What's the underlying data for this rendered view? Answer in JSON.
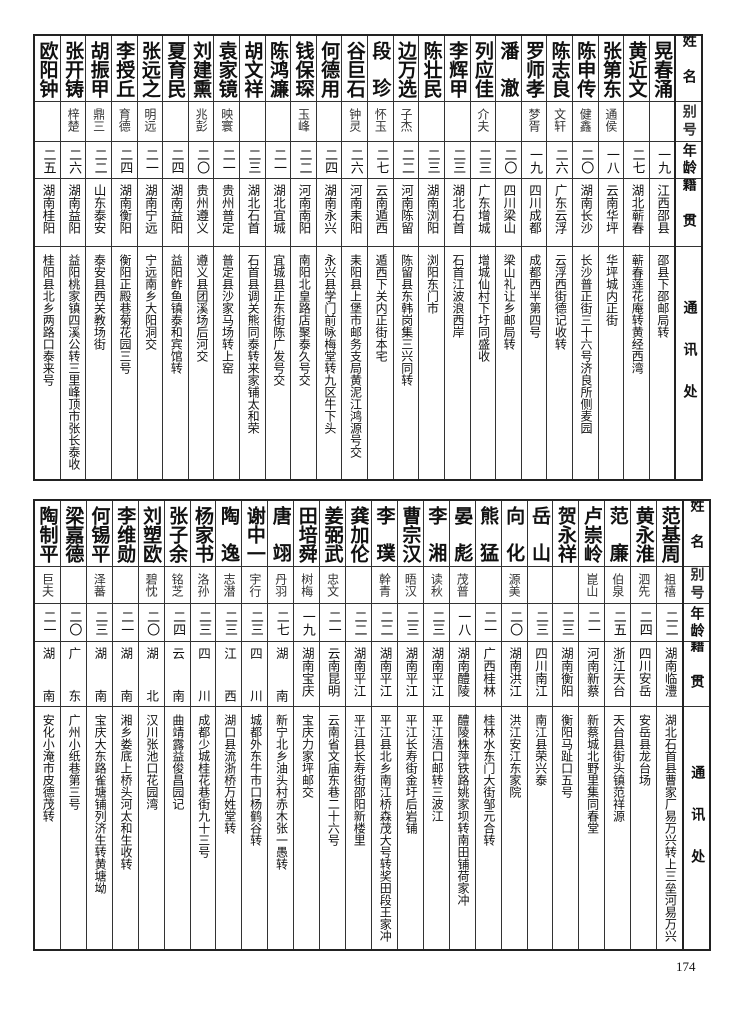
{
  "headers": {
    "name": "姓名",
    "alias": "别号",
    "age": "年龄",
    "origin": "籍贯",
    "address": "通讯处"
  },
  "top": [
    {
      "name": "晃春涌",
      "alias": "",
      "age": "一九",
      "origin": "江西邵县",
      "address": "邵县下邵邮局转"
    },
    {
      "name": "黄近文",
      "alias": "",
      "age": "二七",
      "origin": "湖北蕲春",
      "address": "蕲春莲花庵转黄经西湾"
    },
    {
      "name": "张第东",
      "alias": "通侯",
      "age": "一八",
      "origin": "云南华坪",
      "address": "华坪城内正街"
    },
    {
      "name": "陈申传",
      "alias": "健鑫",
      "age": "二〇",
      "origin": "湖南长沙",
      "address": "长沙普正街三十六号济良所侧麦园"
    },
    {
      "name": "陈志良",
      "alias": "文轩",
      "age": "二六",
      "origin": "广东云浮",
      "address": "云浮西街德记收转"
    },
    {
      "name": "罗师孝",
      "alias": "梦胥",
      "age": "一九",
      "origin": "四川成都",
      "address": "成都西半第四号"
    },
    {
      "name": "潘澈",
      "alias": "",
      "age": "二〇",
      "origin": "四川梁山",
      "address": "梁山礼让乡邮局转"
    },
    {
      "name": "列应佳",
      "alias": "介夫",
      "age": "二三",
      "origin": "广东增城",
      "address": "增城仙村下圩同盛收"
    },
    {
      "name": "李辉甲",
      "alias": "",
      "age": "二三",
      "origin": "湖北石首",
      "address": "石首江波浪西岸"
    },
    {
      "name": "陈壮民",
      "alias": "",
      "age": "二三",
      "origin": "湖南浏阳",
      "address": "浏阳东门市"
    },
    {
      "name": "边万选",
      "alias": "子杰",
      "age": "二二",
      "origin": "河南陈留",
      "address": "陈留县东韩岗集三兴同转"
    },
    {
      "name": "段珍",
      "alias": "怀玉",
      "age": "二七",
      "origin": "云南遁西",
      "address": "遁西下关内正街本宅"
    },
    {
      "name": "谷巨石",
      "alias": "钟灵",
      "age": "二六",
      "origin": "河南耒阳",
      "address": "耒阳县上堡市邮务支局黄泥江鸿源号交"
    },
    {
      "name": "何德用",
      "alias": "",
      "age": "二四",
      "origin": "湖南永兴",
      "address": "永兴县学门前咏梅堂转九区牛下头"
    },
    {
      "name": "钱保琛",
      "alias": "玉峰",
      "age": "二二",
      "origin": "河南南阳",
      "address": "南阳北皇路店聚泰久号交"
    },
    {
      "name": "陈鸿濂",
      "alias": "",
      "age": "二一",
      "origin": "湖北宜城",
      "address": "宜城县正东街陈广发号交"
    },
    {
      "name": "胡文祥",
      "alias": "",
      "age": "二三",
      "origin": "湖北石首",
      "address": "石首县调关熊同泰转来家铺太和荣"
    },
    {
      "name": "袁家镜",
      "alias": "映寰",
      "age": "二一",
      "origin": "贵州普定",
      "address": "普定县沙家马场转上窑"
    },
    {
      "name": "刘建熏",
      "alias": "兆彭",
      "age": "二〇",
      "origin": "贵州遵义",
      "address": "遵义县团溪场后河交"
    },
    {
      "name": "夏育民",
      "alias": "",
      "age": "二四",
      "origin": "湖南益阳",
      "address": "益阳鲊鱼镇泰和宾馆转"
    },
    {
      "name": "张远之",
      "alias": "明远",
      "age": "二一",
      "origin": "湖南宁远",
      "address": "宁远南乡大阳洞交"
    },
    {
      "name": "李授丘",
      "alias": "育德",
      "age": "二四",
      "origin": "湖南衡阳",
      "address": "衡阳正殿巷菊花园三号"
    },
    {
      "name": "胡振甲",
      "alias": "鼎三",
      "age": "二二",
      "origin": "山东泰安",
      "address": "泰安县西关教场街"
    },
    {
      "name": "张开铸",
      "alias": "梓楚",
      "age": "二六",
      "origin": "湖南益阳",
      "address": "益阳桃家镇四溪公转三里峰顶市张长泰收"
    },
    {
      "name": "欧阳钟",
      "alias": "",
      "age": "二五",
      "origin": "湖南桂阳",
      "address": "桂阳县北乡两路口泰来号"
    }
  ],
  "bottom": [
    {
      "name": "范基周",
      "alias": "祖禧",
      "age": "二二",
      "origin": "湖南临澧",
      "address": "湖北石首县曹家厂易万兴转上三垒河易万兴"
    },
    {
      "name": "黄永淮",
      "alias": "泗先",
      "age": "二四",
      "origin": "四川安岳",
      "address": "安岳县龙台场"
    },
    {
      "name": "范廉",
      "alias": "伯泉",
      "age": "二五",
      "origin": "浙江天台",
      "address": "天台县街头镇范祥源"
    },
    {
      "name": "卢崇岭",
      "alias": "崑山",
      "age": "二一",
      "origin": "河南新蔡",
      "address": "新蔡城北野里集同春堂"
    },
    {
      "name": "贺永祥",
      "alias": "",
      "age": "二三",
      "origin": "湖南衡阳",
      "address": "衡阳马趾口五号"
    },
    {
      "name": "岳山",
      "alias": "",
      "age": "二三",
      "origin": "四川南江",
      "address": "南江县荣兴泰"
    },
    {
      "name": "向化",
      "alias": "源美",
      "age": "二〇",
      "origin": "湖南洪江",
      "address": "洪江安江东家院"
    },
    {
      "name": "熊猛",
      "alias": "",
      "age": "二一",
      "origin": "广西桂林",
      "address": "桂林水东门大街邹元合转"
    },
    {
      "name": "晏彪",
      "alias": "茂普",
      "age": "一八",
      "origin": "湖南醴陵",
      "address": "醴陵株萍铁路姚家坝转南田铺荷家冲"
    },
    {
      "name": "李湘",
      "alias": "读秋",
      "age": "二三",
      "origin": "湖南平江",
      "address": "平江浯口邮转三波江"
    },
    {
      "name": "曹宗汉",
      "alias": "晤汉",
      "age": "二三",
      "origin": "湖南平江",
      "address": "平江长寿街金圩后岩铺"
    },
    {
      "name": "李璞",
      "alias": "幹青",
      "age": "二二",
      "origin": "湖南平江",
      "address": "平江县北乡南江桥森茂大号转奖田段王家冲"
    },
    {
      "name": "龚加伦",
      "alias": "",
      "age": "二二",
      "origin": "湖南平江",
      "address": "平江县长寿街邵阳新楼里"
    },
    {
      "name": "姜弼武",
      "alias": "忠文",
      "age": "二一",
      "origin": "云南昆明",
      "address": "云南省文庙东巷二十六号"
    },
    {
      "name": "田培舜",
      "alias": "树梅",
      "age": "一九",
      "origin": "湖南宝庆",
      "address": "宝庆力家坪邮交"
    },
    {
      "name": "唐翊",
      "alias": "丹羽",
      "age": "二七",
      "origin": "湖南",
      "address": "新宁北乡油头村赤木张一愚转"
    },
    {
      "name": "谢中一",
      "alias": "宇行",
      "age": "二三",
      "origin": "四川",
      "address": "城都外东牛市口杨鹤谷转"
    },
    {
      "name": "陶逸",
      "alias": "志潜",
      "age": "二三",
      "origin": "江西",
      "address": "湖口县流浙桥万姓堂转"
    },
    {
      "name": "杨家书",
      "alias": "洛孙",
      "age": "二三",
      "origin": "四川",
      "address": "成都少城桂花巷街九十三号"
    },
    {
      "name": "张子余",
      "alias": "铭芝",
      "age": "二四",
      "origin": "云南",
      "address": "曲靖露益俊昌园记"
    },
    {
      "name": "刘塑欧",
      "alias": "碧忱",
      "age": "二〇",
      "origin": "湖北",
      "address": "汉川张池口花园湾"
    },
    {
      "name": "李维勋",
      "alias": "",
      "age": "二一",
      "origin": "湖南",
      "address": "湘乡娄底上桥头河太和生收转"
    },
    {
      "name": "何锡平",
      "alias": "泽蕃",
      "age": "二三",
      "origin": "湖南",
      "address": "宝庆大东路雀塘铺列济生转黄塘坳"
    },
    {
      "name": "梁嘉德",
      "alias": "",
      "age": "二〇",
      "origin": "广东",
      "address": "广州小纸巷第三号"
    },
    {
      "name": "陶制平",
      "alias": "巨夫",
      "age": "二一",
      "origin": "湖南",
      "address": "安化小淹市皮德茂转"
    }
  ],
  "page_number": "174"
}
